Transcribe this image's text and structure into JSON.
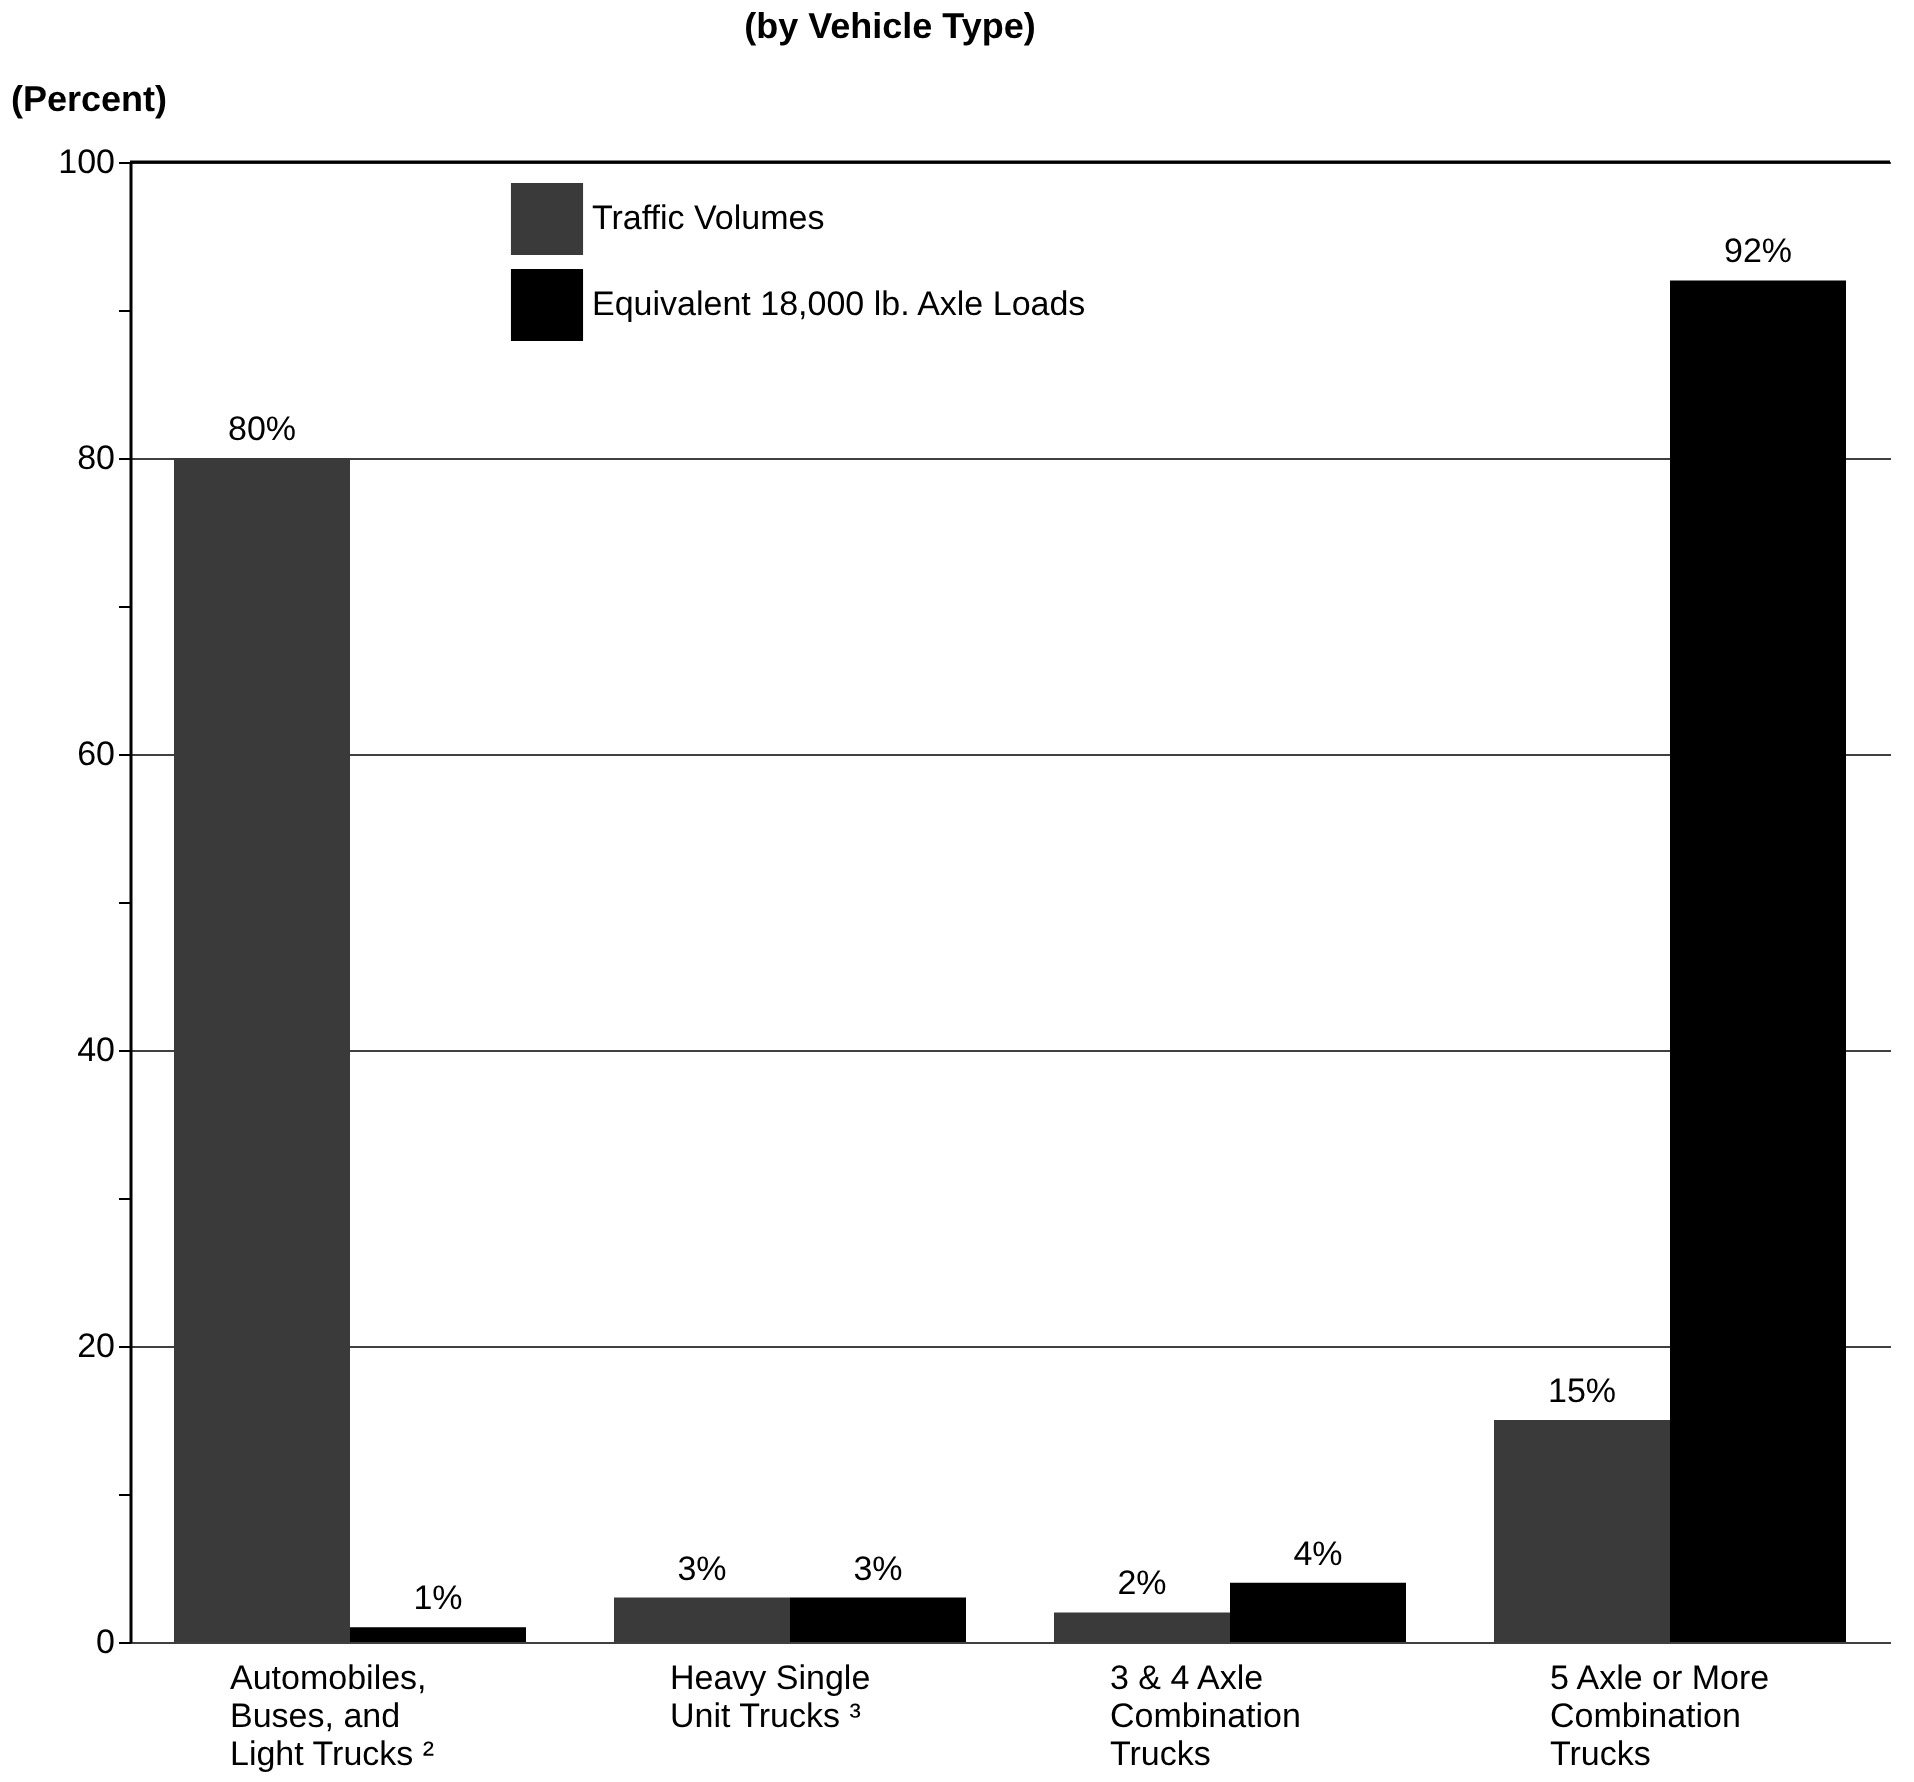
{
  "chart_data": {
    "type": "bar",
    "title": "(by Vehicle Type)",
    "ylabel": "(Percent)",
    "categories": [
      "Automobiles, Buses, and Light Trucks ²",
      "Heavy Single Unit Trucks ³",
      "3 & 4 Axle Combination Trucks",
      "5 Axle or More Combination Trucks"
    ],
    "series": [
      {
        "name": "Traffic Volumes",
        "color": "#3a3a3a",
        "values": [
          80,
          3,
          2,
          15
        ],
        "value_labels": [
          "80%",
          "3%",
          "2%",
          "15%"
        ]
      },
      {
        "name": "Equivalent 18,000 lb. Axle Loads",
        "color": "#000000",
        "values": [
          1,
          3,
          4,
          92
        ],
        "value_labels": [
          "1%",
          "3%",
          "4%",
          "92%"
        ]
      }
    ],
    "ylim": [
      0,
      100
    ],
    "yticks": [
      0,
      {
        "value": 10,
        "label": null
      },
      20,
      {
        "value": 30,
        "label": null
      },
      40,
      {
        "value": 50,
        "label": null
      },
      60,
      {
        "value": 70,
        "label": null
      },
      80,
      {
        "value": 90,
        "label": null
      },
      100
    ],
    "grid": "y",
    "legend": "top left"
  }
}
